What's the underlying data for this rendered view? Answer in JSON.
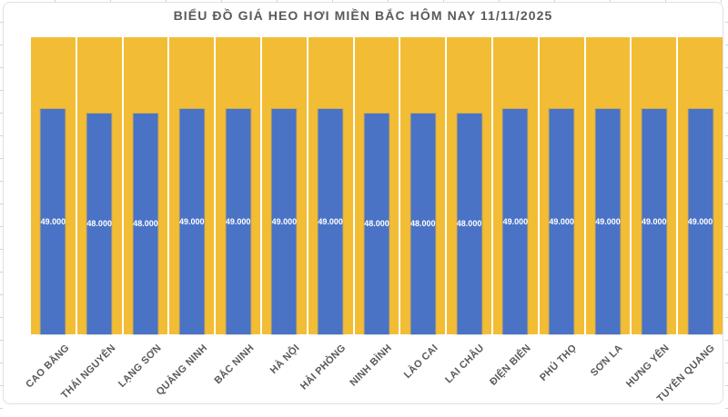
{
  "chart_data": {
    "type": "bar",
    "title": "BIỂU ĐỒ GIÁ HEO HƠI MIỀN BẮC HÔM NAY 11/11/2025",
    "categories": [
      "CAO BẰNG",
      "THÁI NGUYÊN",
      "LẠNG SƠN",
      "QUẢNG NINH",
      "BẮC NINH",
      "HÀ NỘI",
      "HẢI PHÒNG",
      "NINH BÌNH",
      "LÀO CAI",
      "LAI CHÂU",
      "ĐIỆN BIÊN",
      "PHÚ THỌ",
      "SƠN LA",
      "HƯNG YÊN",
      "TUYÊN QUANG"
    ],
    "values": [
      49000,
      48000,
      48000,
      49000,
      49000,
      49000,
      49000,
      48000,
      48000,
      48000,
      49000,
      49000,
      49000,
      49000,
      49000
    ],
    "value_labels": [
      "49.000",
      "48.000",
      "48.000",
      "49.000",
      "49.000",
      "49.000",
      "49.000",
      "48.000",
      "48.000",
      "48.000",
      "49.000",
      "49.000",
      "49.000",
      "49.000",
      "49.000"
    ],
    "xlabel": "",
    "ylabel": "",
    "ylim": [
      0,
      64500
    ],
    "grid": false,
    "legend_position": "none",
    "data_label_position": "center",
    "x_tick_rotation_deg": 45,
    "colors": {
      "bar": "#4a73c6",
      "column_background": "#f2bd35",
      "title_text": "#595959",
      "axis_label_text": "#595959",
      "data_label_text": "#ffffff",
      "frame_border": "#e2e0de",
      "chart_background": "#ffffff"
    }
  }
}
